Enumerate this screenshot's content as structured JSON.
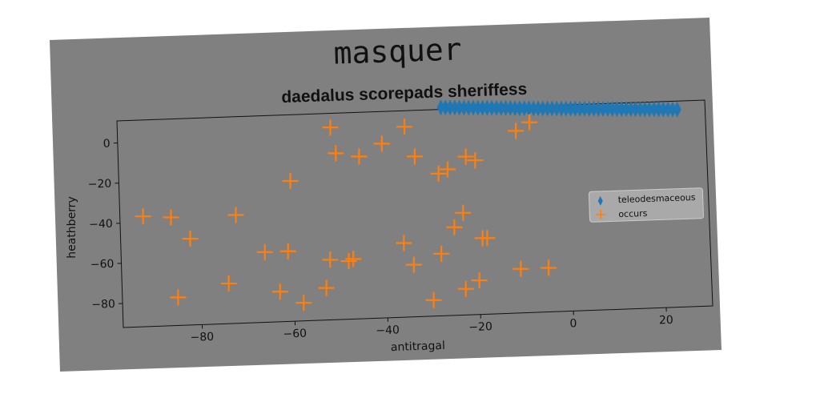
{
  "chart_data": {
    "type": "scatter",
    "suptitle": "masquer",
    "title": "daedalus scorepads sheriffess",
    "xlabel": "antitragal",
    "ylabel": "heathberry",
    "xlim": [
      -97,
      30
    ],
    "ylim": [
      -92,
      11
    ],
    "xticks": [
      -80,
      -60,
      -40,
      -20,
      0,
      20
    ],
    "yticks": [
      0,
      -20,
      -40,
      -60,
      -80
    ],
    "grid": false,
    "legend_position": "right",
    "background": "#808080",
    "series": [
      {
        "name": "teleodesmaceous",
        "marker": "thin_diamond",
        "color": "#1f77b4",
        "x": [
          -27,
          -26,
          -25,
          -24,
          -23,
          -22,
          -21,
          -20,
          -19,
          -18,
          -17,
          -16,
          -15,
          -14,
          -13,
          -12,
          -11,
          -10,
          -9,
          -8,
          -7,
          -6,
          -5,
          -4,
          -3,
          -2,
          -1,
          0,
          1,
          2,
          3,
          4,
          5,
          6,
          7,
          8,
          9,
          10,
          11,
          12,
          13,
          14,
          15,
          16,
          17,
          18,
          19,
          20,
          21,
          22,
          23,
          24
        ],
        "y": [
          12.0,
          11.9,
          11.8,
          11.7,
          11.6,
          11.5,
          11.4,
          11.3,
          11.2,
          11.1,
          11.0,
          10.9,
          10.8,
          10.7,
          10.6,
          10.5,
          10.3,
          10.2,
          10.1,
          10.0,
          9.9,
          9.8,
          9.7,
          9.6,
          9.5,
          9.4,
          9.3,
          9.2,
          9.1,
          9.0,
          8.9,
          8.8,
          8.7,
          8.6,
          8.5,
          8.4,
          8.3,
          8.2,
          8.1,
          8.0,
          7.9,
          7.8,
          7.7,
          7.6,
          7.5,
          7.4,
          7.3,
          7.2,
          7.1,
          7.0,
          6.9,
          6.8
        ]
      },
      {
        "name": "occurs",
        "marker": "plus",
        "color": "#ff7f0e",
        "x": [
          -92,
          -86,
          -82,
          -85,
          -72,
          -74,
          -66,
          -61,
          -63,
          -60,
          -58,
          -52,
          -53,
          -51,
          -50,
          -48,
          -47,
          -45,
          -40,
          -36,
          -35,
          -34,
          -33,
          -30,
          -28,
          -28,
          -26,
          -25,
          -23,
          -23,
          -22,
          -20,
          -20,
          -19,
          -18,
          -11,
          -11,
          -8,
          -5
        ],
        "y": [
          -37,
          -38,
          -49,
          -78,
          -38,
          -72,
          -57,
          -57,
          -77,
          -22,
          -83,
          -62,
          -76,
          4,
          -9,
          -63,
          -62,
          -11,
          -5,
          -55,
          3,
          -66,
          -12,
          -84,
          -61,
          -21,
          -19,
          -48,
          -79,
          -41,
          -13,
          -15,
          -75,
          -54,
          -54,
          -70,
          -1,
          3,
          -70
        ]
      }
    ]
  }
}
